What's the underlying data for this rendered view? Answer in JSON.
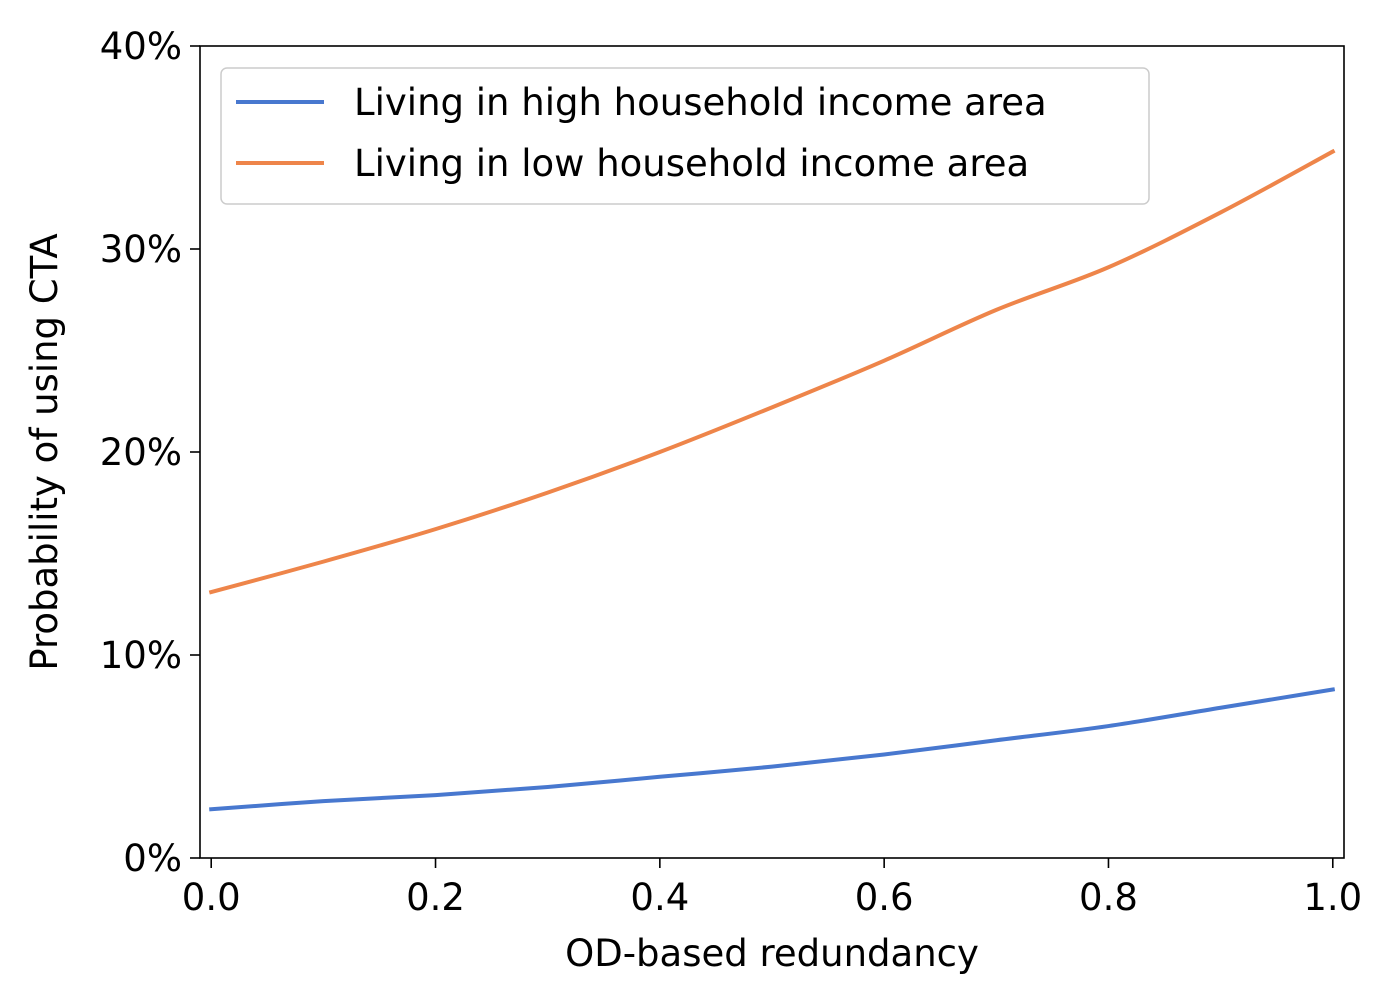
{
  "chart_data": {
    "type": "line",
    "title": "",
    "xlabel": "OD-based redundancy",
    "ylabel": "Probability of using CTA",
    "xlim": [
      -0.01,
      1.01
    ],
    "ylim": [
      0,
      0.4
    ],
    "x_ticks": [
      0.0,
      0.2,
      0.4,
      0.6,
      0.8,
      1.0
    ],
    "x_tick_labels": [
      "0.0",
      "0.2",
      "0.4",
      "0.6",
      "0.8",
      "1.0"
    ],
    "y_ticks": [
      0,
      0.1,
      0.2,
      0.3,
      0.4
    ],
    "y_tick_labels": [
      "0%",
      "10%",
      "20%",
      "30%",
      "40%"
    ],
    "grid": false,
    "legend_position": "top-left",
    "x": [
      0.0,
      0.1,
      0.2,
      0.3,
      0.4,
      0.5,
      0.6,
      0.7,
      0.8,
      0.9,
      1.0
    ],
    "series": [
      {
        "name": "Living in high household income area",
        "color": "#4878cf",
        "values": [
          0.024,
          0.028,
          0.031,
          0.035,
          0.04,
          0.045,
          0.051,
          0.058,
          0.065,
          0.074,
          0.083
        ]
      },
      {
        "name": "Living in low household income area",
        "color": "#ee854a",
        "values": [
          0.131,
          0.146,
          0.162,
          0.18,
          0.2,
          0.222,
          0.245,
          0.27,
          0.291,
          0.318,
          0.348
        ]
      }
    ]
  }
}
